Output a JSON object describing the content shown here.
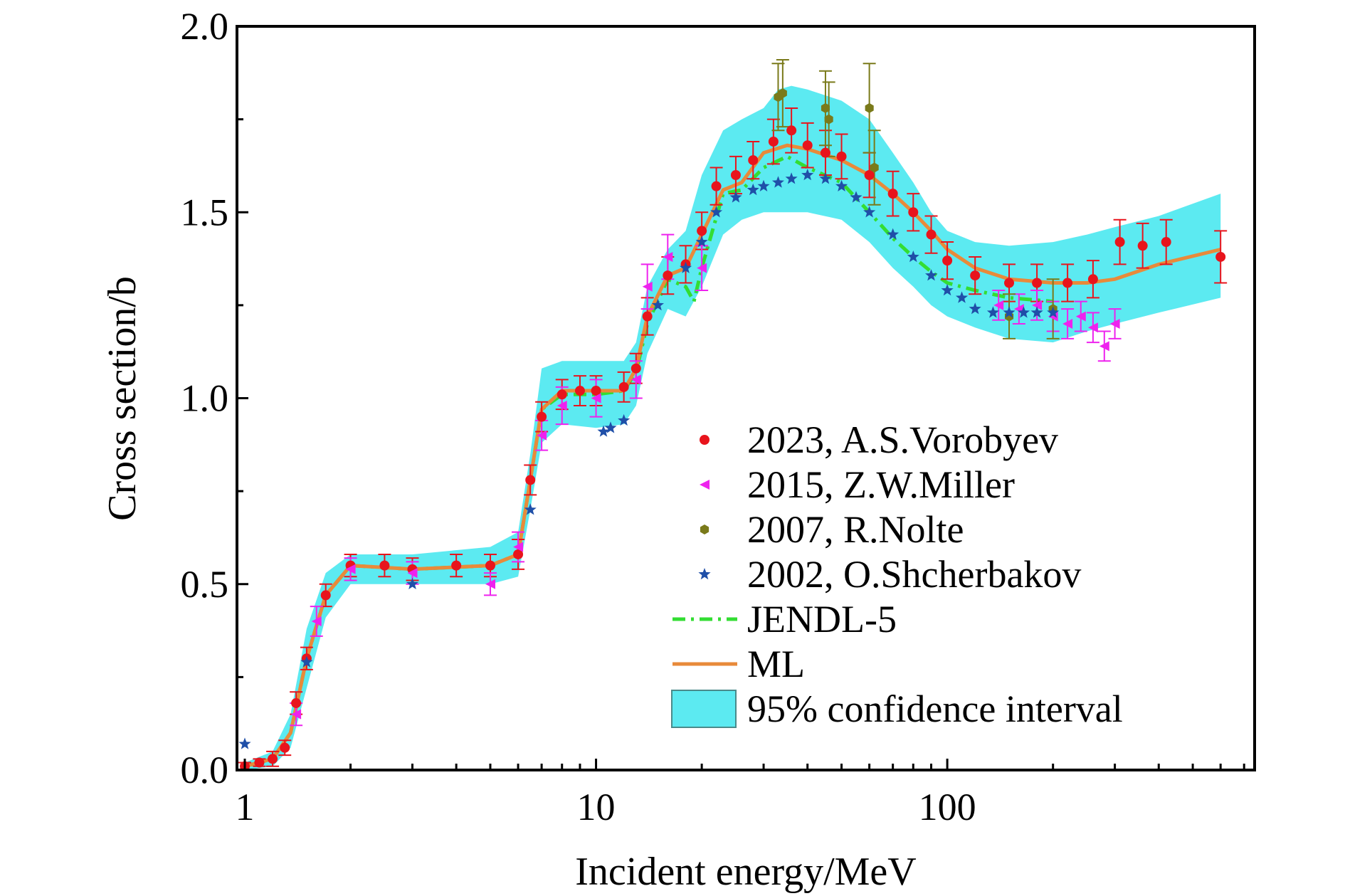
{
  "chart_data": {
    "type": "scatter",
    "title": "",
    "xlabel": "Incident energy/MeV",
    "ylabel": "Cross section/b",
    "xscale": "log",
    "xlim": [
      0.95,
      750
    ],
    "ylim": [
      0.0,
      2.0
    ],
    "x_ticks": [
      1,
      10,
      100
    ],
    "x_tick_labels": [
      "1",
      "10",
      "100"
    ],
    "y_ticks": [
      0.0,
      0.5,
      1.0,
      1.5,
      2.0
    ],
    "y_tick_labels": [
      "0.0",
      "0.5",
      "1.0",
      "1.5",
      "2.0"
    ],
    "grid": false,
    "legend_position": "bottom-right",
    "colors": {
      "vorobyev": "#e8141c",
      "miller": "#ee22ee",
      "nolte": "#7a7a1a",
      "shcherbakov": "#1f4fa8",
      "jendl": "#33dd33",
      "ml": "#e88a3a",
      "band": "#3fe6ee"
    },
    "series": [
      {
        "name": "2023, A.S.Vorobyev",
        "kind": "scatter",
        "marker": "circle",
        "color": "#e8141c",
        "x": [
          1.0,
          1.1,
          1.2,
          1.3,
          1.4,
          1.5,
          1.7,
          2.0,
          2.5,
          3.0,
          4.0,
          5.0,
          6.0,
          6.5,
          7.0,
          8.0,
          9.0,
          10.0,
          12.0,
          13.0,
          14.0,
          16.0,
          18.0,
          20.0,
          22.0,
          25.0,
          28.0,
          32.0,
          36.0,
          40.0,
          45.0,
          50.0,
          60.0,
          70.0,
          80.0,
          90.0,
          100.0,
          120.0,
          150.0,
          180.0,
          220.0,
          260.0,
          310.0,
          360.0,
          420.0,
          600.0
        ],
        "y": [
          0.01,
          0.02,
          0.03,
          0.06,
          0.18,
          0.3,
          0.47,
          0.55,
          0.55,
          0.54,
          0.55,
          0.55,
          0.58,
          0.78,
          0.95,
          1.01,
          1.02,
          1.02,
          1.03,
          1.08,
          1.22,
          1.33,
          1.36,
          1.45,
          1.57,
          1.6,
          1.64,
          1.69,
          1.72,
          1.68,
          1.66,
          1.65,
          1.6,
          1.55,
          1.5,
          1.44,
          1.37,
          1.33,
          1.31,
          1.31,
          1.31,
          1.32,
          1.42,
          1.41,
          1.42,
          1.38
        ],
        "err": [
          0.01,
          0.01,
          0.02,
          0.02,
          0.03,
          0.03,
          0.03,
          0.03,
          0.03,
          0.03,
          0.03,
          0.03,
          0.04,
          0.04,
          0.04,
          0.04,
          0.04,
          0.04,
          0.04,
          0.04,
          0.05,
          0.05,
          0.05,
          0.05,
          0.05,
          0.05,
          0.05,
          0.06,
          0.06,
          0.06,
          0.06,
          0.06,
          0.06,
          0.06,
          0.05,
          0.05,
          0.05,
          0.05,
          0.05,
          0.05,
          0.05,
          0.05,
          0.06,
          0.06,
          0.06,
          0.07
        ]
      },
      {
        "name": "2015, Z.W.Miller",
        "kind": "scatter",
        "marker": "triangle-left",
        "color": "#ee22ee",
        "x": [
          1.4,
          1.6,
          2.0,
          3.0,
          5.0,
          6.0,
          7.0,
          8.0,
          10.0,
          13.0,
          14.0,
          16.0,
          20.0,
          140.0,
          160.0,
          180.0,
          200.0,
          220.0,
          240.0,
          260.0,
          280.0,
          300.0
        ],
        "y": [
          0.15,
          0.4,
          0.54,
          0.53,
          0.5,
          0.6,
          0.9,
          0.98,
          1.0,
          1.05,
          1.3,
          1.38,
          1.35,
          1.25,
          1.24,
          1.25,
          1.22,
          1.2,
          1.22,
          1.19,
          1.14,
          1.2
        ],
        "err": [
          0.03,
          0.04,
          0.03,
          0.03,
          0.03,
          0.04,
          0.04,
          0.05,
          0.05,
          0.05,
          0.06,
          0.06,
          0.06,
          0.04,
          0.04,
          0.04,
          0.04,
          0.04,
          0.04,
          0.04,
          0.04,
          0.04
        ]
      },
      {
        "name": "2007, R.Nolte",
        "kind": "scatter",
        "marker": "hexagon",
        "color": "#7a7a1a",
        "x": [
          33.0,
          34.0,
          45.0,
          46.0,
          60.0,
          62.0,
          150.0,
          200.0
        ],
        "y": [
          1.81,
          1.82,
          1.78,
          1.75,
          1.78,
          1.62,
          1.22,
          1.24
        ],
        "err": [
          0.09,
          0.09,
          0.1,
          0.1,
          0.12,
          0.1,
          0.06,
          0.08
        ]
      },
      {
        "name": "2002, O.Shcherbakov",
        "kind": "scatter",
        "marker": "star",
        "color": "#1f4fa8",
        "x": [
          1.0,
          1.5,
          3.0,
          6.5,
          10.5,
          11.0,
          12.0,
          15.0,
          18.0,
          20.0,
          22.0,
          25.0,
          28.0,
          30.0,
          33.0,
          36.0,
          40.0,
          45.0,
          50.0,
          55.0,
          60.0,
          70.0,
          80.0,
          90.0,
          100.0,
          110.0,
          120.0,
          135.0,
          150.0,
          165.0,
          180.0,
          200.0
        ],
        "y": [
          0.07,
          0.29,
          0.5,
          0.7,
          0.91,
          0.92,
          0.94,
          1.25,
          1.35,
          1.42,
          1.5,
          1.54,
          1.56,
          1.57,
          1.58,
          1.59,
          1.6,
          1.59,
          1.57,
          1.54,
          1.5,
          1.44,
          1.38,
          1.33,
          1.29,
          1.27,
          1.24,
          1.23,
          1.23,
          1.23,
          1.23,
          1.23
        ]
      },
      {
        "name": "JENDL-5",
        "kind": "line",
        "style": "dash-dot",
        "color": "#33dd33",
        "x": [
          1.0,
          1.2,
          1.35,
          1.5,
          1.7,
          2.0,
          3.0,
          5.0,
          6.0,
          6.5,
          7.0,
          8.0,
          10.0,
          12.0,
          13.0,
          14.0,
          16.0,
          18.0,
          19.0,
          20.0,
          23.0,
          26.0,
          30.0,
          35.0,
          40.0,
          50.0,
          60.0,
          70.0,
          80.0,
          90.0,
          100.0,
          120.0,
          150.0,
          200.0
        ],
        "y": [
          0.01,
          0.03,
          0.1,
          0.3,
          0.47,
          0.55,
          0.54,
          0.55,
          0.58,
          0.78,
          0.97,
          1.01,
          1.01,
          1.02,
          1.07,
          1.2,
          1.32,
          1.3,
          1.26,
          1.35,
          1.55,
          1.56,
          1.62,
          1.65,
          1.62,
          1.58,
          1.5,
          1.43,
          1.38,
          1.34,
          1.31,
          1.29,
          1.27,
          1.26
        ]
      },
      {
        "name": "ML",
        "kind": "line",
        "style": "solid",
        "color": "#e88a3a",
        "x": [
          1.0,
          1.2,
          1.35,
          1.5,
          1.7,
          2.0,
          3.0,
          5.0,
          6.0,
          6.5,
          7.0,
          8.0,
          10.0,
          12.0,
          13.0,
          14.0,
          16.0,
          18.0,
          20.0,
          23.0,
          26.0,
          30.0,
          35.0,
          40.0,
          50.0,
          60.0,
          70.0,
          80.0,
          90.0,
          100.0,
          120.0,
          150.0,
          200.0,
          250.0,
          300.0,
          400.0,
          600.0
        ],
        "y": [
          0.01,
          0.03,
          0.1,
          0.3,
          0.47,
          0.55,
          0.54,
          0.55,
          0.58,
          0.78,
          0.97,
          1.02,
          1.02,
          1.02,
          1.08,
          1.22,
          1.33,
          1.35,
          1.44,
          1.56,
          1.58,
          1.66,
          1.68,
          1.67,
          1.64,
          1.6,
          1.55,
          1.5,
          1.45,
          1.4,
          1.35,
          1.32,
          1.31,
          1.31,
          1.32,
          1.36,
          1.4
        ]
      }
    ],
    "band": {
      "name": "95% confidence interval",
      "color": "#3fe6ee",
      "x": [
        1.0,
        1.2,
        1.35,
        1.5,
        1.7,
        2.0,
        3.0,
        5.0,
        6.0,
        6.5,
        7.0,
        8.0,
        10.0,
        12.0,
        13.0,
        14.0,
        16.0,
        18.0,
        20.0,
        23.0,
        26.0,
        30.0,
        33.0,
        36.0,
        40.0,
        50.0,
        60.0,
        70.0,
        80.0,
        90.0,
        100.0,
        120.0,
        150.0,
        200.0,
        250.0,
        300.0,
        400.0,
        600.0
      ],
      "upper": [
        0.02,
        0.05,
        0.15,
        0.38,
        0.53,
        0.58,
        0.58,
        0.6,
        0.64,
        0.85,
        1.08,
        1.1,
        1.1,
        1.1,
        1.15,
        1.3,
        1.4,
        1.45,
        1.6,
        1.72,
        1.75,
        1.78,
        1.83,
        1.84,
        1.83,
        1.8,
        1.75,
        1.66,
        1.58,
        1.5,
        1.45,
        1.42,
        1.41,
        1.42,
        1.44,
        1.46,
        1.49,
        1.55
      ],
      "lower": [
        0.0,
        0.01,
        0.06,
        0.22,
        0.41,
        0.5,
        0.5,
        0.5,
        0.52,
        0.7,
        0.88,
        0.93,
        0.92,
        0.93,
        0.98,
        1.12,
        1.24,
        1.22,
        1.3,
        1.44,
        1.48,
        1.5,
        1.5,
        1.5,
        1.5,
        1.48,
        1.42,
        1.35,
        1.3,
        1.25,
        1.22,
        1.19,
        1.16,
        1.15,
        1.18,
        1.2,
        1.23,
        1.27
      ]
    }
  }
}
